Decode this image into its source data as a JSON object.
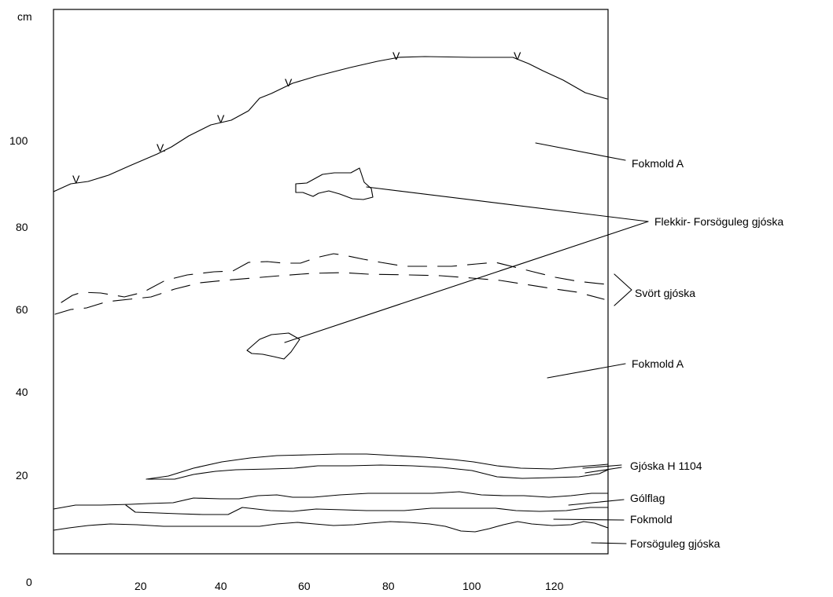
{
  "axes": {
    "y_unit": "cm",
    "y_ticks": [
      "100",
      "80",
      "60",
      "40",
      "20"
    ],
    "x_ticks": [
      "0",
      "20",
      "40",
      "60",
      "80",
      "100",
      "120"
    ]
  },
  "surface_marks": [
    "V",
    "V.",
    "V",
    "V",
    "V",
    "V"
  ],
  "labels": {
    "fokmold_a_upper": "Fokmold A",
    "flekkir": "Flekkir- Forsöguleg gjóska",
    "svort_gjoska": "Svört gjóska",
    "fokmold_a_lower": "Fokmold A",
    "gjoska_h1104": "Gjóska H 1104",
    "golflag": "Gólflag",
    "fokmold": "Fokmold",
    "forsoguleg_gjoska": "Forsöguleg gjóska"
  }
}
